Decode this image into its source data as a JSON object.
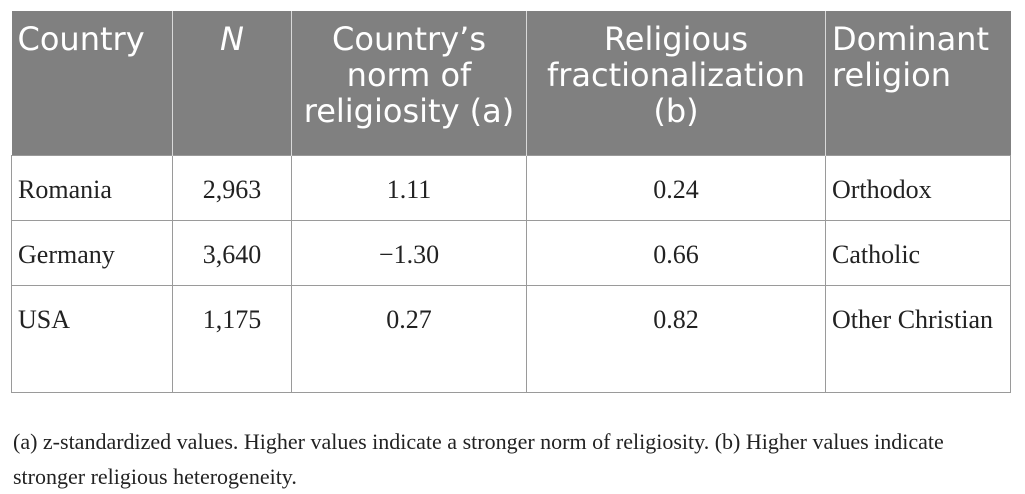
{
  "table": {
    "headers": [
      "Country",
      "N",
      "Country’s norm of religiosity (a)",
      "Religious fractionalization (b)",
      "Dominant religion"
    ],
    "rows": [
      [
        "Romania",
        "2,963",
        "1.11",
        "0.24",
        "Orthodox"
      ],
      [
        "Germany",
        "3,640",
        "−1.30",
        "0.66",
        "Catholic"
      ],
      [
        "USA",
        "1,175",
        "0.27",
        "0.82",
        "Other Christian"
      ]
    ]
  },
  "footnote": "(a) z-standardized values. Higher values indicate a stronger norm of religiosity. (b) Higher values indicate stronger religious heterogeneity.",
  "colors": {
    "header_bg": "#808080",
    "header_text": "#ffffff",
    "border": "#9a9a9a",
    "body_text": "#222222"
  }
}
